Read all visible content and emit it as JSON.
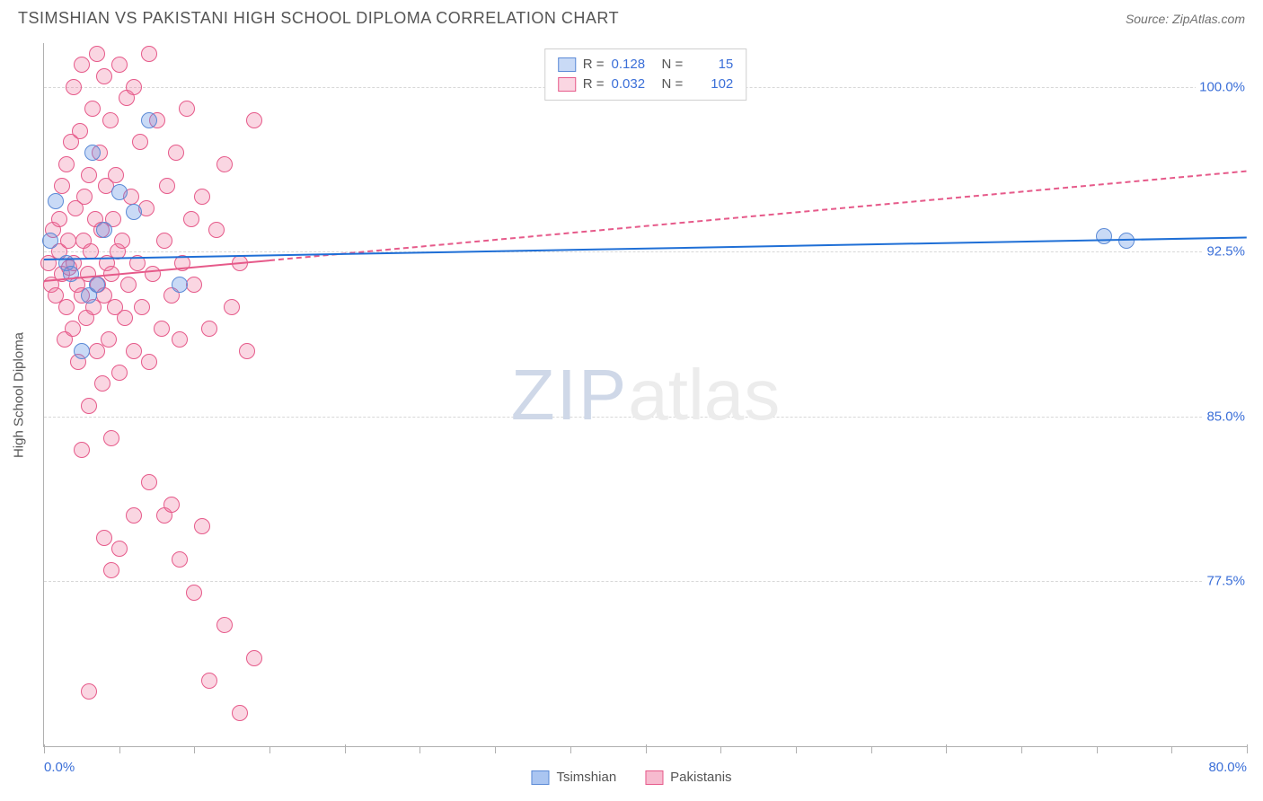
{
  "header": {
    "title": "TSIMSHIAN VS PAKISTANI HIGH SCHOOL DIPLOMA CORRELATION CHART",
    "source": "Source: ZipAtlas.com"
  },
  "watermark": {
    "zip": "ZIP",
    "atlas": "atlas"
  },
  "chart": {
    "type": "scatter",
    "ylabel": "High School Diploma",
    "background_color": "#ffffff",
    "grid_color": "#d8d8d8",
    "axis_color": "#b0b0b0",
    "xlim": [
      0,
      80
    ],
    "ylim": [
      70,
      102
    ],
    "y_ticks": [
      {
        "value": 100.0,
        "label": "100.0%"
      },
      {
        "value": 92.5,
        "label": "92.5%"
      },
      {
        "value": 85.0,
        "label": "85.0%"
      },
      {
        "value": 77.5,
        "label": "77.5%"
      }
    ],
    "x_ticks_major": [
      0,
      20,
      40,
      60,
      80
    ],
    "x_ticks_minor": [
      5,
      10,
      15,
      25,
      30,
      35,
      45,
      50,
      55,
      65,
      70,
      75
    ],
    "x_labels": [
      {
        "value": 0,
        "label": "0.0%"
      },
      {
        "value": 80,
        "label": "80.0%"
      }
    ],
    "marker_radius": 9,
    "marker_stroke_width": 1.5,
    "series": [
      {
        "name": "Tsimshian",
        "fill_color": "rgba(100,150,230,0.35)",
        "stroke_color": "#5b8ad6",
        "line_color": "#1f6fd6",
        "line_width": 2.5,
        "line_dash": "solid",
        "R_label": "R =",
        "R_value": "0.128",
        "N_label": "N =",
        "N_value": "15",
        "regression": {
          "x0": 0,
          "y0": 92.2,
          "x1": 80,
          "y1": 93.2,
          "solid_until_x": 80
        },
        "points": [
          [
            0.4,
            93.0
          ],
          [
            0.8,
            94.8
          ],
          [
            1.5,
            92.0
          ],
          [
            1.8,
            91.5
          ],
          [
            2.5,
            88.0
          ],
          [
            3.0,
            90.5
          ],
          [
            3.2,
            97.0
          ],
          [
            3.5,
            91.0
          ],
          [
            4.0,
            93.5
          ],
          [
            5.0,
            95.2
          ],
          [
            6.0,
            94.3
          ],
          [
            7.0,
            98.5
          ],
          [
            9.0,
            91.0
          ],
          [
            70.5,
            93.2
          ],
          [
            72.0,
            93.0
          ]
        ]
      },
      {
        "name": "Pakistanis",
        "fill_color": "rgba(240,120,160,0.30)",
        "stroke_color": "#e65a8a",
        "line_color": "#e65a8a",
        "line_width": 2.5,
        "line_dash": "dashed",
        "R_label": "R =",
        "R_value": "0.032",
        "N_label": "N =",
        "N_value": "102",
        "regression": {
          "x0": 0,
          "y0": 91.2,
          "x1": 80,
          "y1": 96.2,
          "solid_until_x": 15
        },
        "points": [
          [
            0.3,
            92.0
          ],
          [
            0.5,
            91.0
          ],
          [
            0.6,
            93.5
          ],
          [
            0.8,
            90.5
          ],
          [
            1.0,
            92.5
          ],
          [
            1.0,
            94.0
          ],
          [
            1.2,
            91.5
          ],
          [
            1.2,
            95.5
          ],
          [
            1.4,
            88.5
          ],
          [
            1.5,
            90.0
          ],
          [
            1.5,
            96.5
          ],
          [
            1.6,
            93.0
          ],
          [
            1.7,
            91.8
          ],
          [
            1.8,
            97.5
          ],
          [
            1.9,
            89.0
          ],
          [
            2.0,
            92.0
          ],
          [
            2.0,
            100.0
          ],
          [
            2.1,
            94.5
          ],
          [
            2.2,
            91.0
          ],
          [
            2.3,
            87.5
          ],
          [
            2.4,
            98.0
          ],
          [
            2.5,
            90.5
          ],
          [
            2.5,
            101.0
          ],
          [
            2.6,
            93.0
          ],
          [
            2.7,
            95.0
          ],
          [
            2.8,
            89.5
          ],
          [
            2.9,
            91.5
          ],
          [
            3.0,
            96.0
          ],
          [
            3.0,
            85.5
          ],
          [
            3.1,
            92.5
          ],
          [
            3.2,
            99.0
          ],
          [
            3.3,
            90.0
          ],
          [
            3.4,
            94.0
          ],
          [
            3.5,
            88.0
          ],
          [
            3.5,
            101.5
          ],
          [
            3.6,
            91.0
          ],
          [
            3.7,
            97.0
          ],
          [
            3.8,
            93.5
          ],
          [
            3.9,
            86.5
          ],
          [
            4.0,
            90.5
          ],
          [
            4.0,
            100.5
          ],
          [
            4.1,
            95.5
          ],
          [
            4.2,
            92.0
          ],
          [
            4.3,
            88.5
          ],
          [
            4.4,
            98.5
          ],
          [
            4.5,
            91.5
          ],
          [
            4.5,
            84.0
          ],
          [
            4.6,
            94.0
          ],
          [
            4.7,
            90.0
          ],
          [
            4.8,
            96.0
          ],
          [
            4.9,
            92.5
          ],
          [
            5.0,
            87.0
          ],
          [
            5.0,
            101.0
          ],
          [
            5.2,
            93.0
          ],
          [
            5.4,
            89.5
          ],
          [
            5.5,
            99.5
          ],
          [
            5.6,
            91.0
          ],
          [
            5.8,
            95.0
          ],
          [
            6.0,
            88.0
          ],
          [
            6.0,
            100.0
          ],
          [
            6.2,
            92.0
          ],
          [
            6.4,
            97.5
          ],
          [
            6.5,
            90.0
          ],
          [
            6.8,
            94.5
          ],
          [
            7.0,
            87.5
          ],
          [
            7.0,
            101.5
          ],
          [
            7.2,
            91.5
          ],
          [
            7.5,
            98.5
          ],
          [
            7.8,
            89.0
          ],
          [
            8.0,
            93.0
          ],
          [
            8.0,
            80.5
          ],
          [
            8.2,
            95.5
          ],
          [
            8.5,
            90.5
          ],
          [
            8.8,
            97.0
          ],
          [
            9.0,
            88.5
          ],
          [
            9.0,
            78.5
          ],
          [
            9.2,
            92.0
          ],
          [
            9.5,
            99.0
          ],
          [
            9.8,
            94.0
          ],
          [
            10.0,
            77.0
          ],
          [
            10.0,
            91.0
          ],
          [
            10.5,
            95.0
          ],
          [
            10.5,
            80.0
          ],
          [
            11.0,
            89.0
          ],
          [
            11.0,
            73.0
          ],
          [
            11.5,
            93.5
          ],
          [
            12.0,
            75.5
          ],
          [
            12.0,
            96.5
          ],
          [
            12.5,
            90.0
          ],
          [
            13.0,
            92.0
          ],
          [
            13.0,
            71.5
          ],
          [
            13.5,
            88.0
          ],
          [
            14.0,
            98.5
          ],
          [
            14.0,
            74.0
          ],
          [
            3.0,
            72.5
          ],
          [
            4.0,
            79.5
          ],
          [
            4.5,
            78.0
          ],
          [
            5.0,
            79.0
          ],
          [
            2.5,
            83.5
          ],
          [
            6.0,
            80.5
          ],
          [
            7.0,
            82.0
          ],
          [
            8.5,
            81.0
          ]
        ]
      }
    ]
  },
  "legend_bottom": {
    "items": [
      {
        "swatch_fill": "rgba(100,150,230,0.55)",
        "swatch_stroke": "#5b8ad6",
        "label": "Tsimshian"
      },
      {
        "swatch_fill": "rgba(240,120,160,0.50)",
        "swatch_stroke": "#e65a8a",
        "label": "Pakistanis"
      }
    ]
  }
}
